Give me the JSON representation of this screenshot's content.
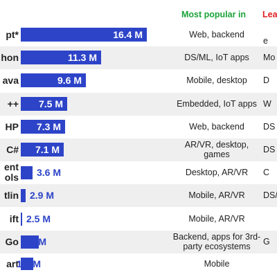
{
  "header": {
    "most_popular": "Most popular in",
    "least_popular": "Lea"
  },
  "chart_data": {
    "type": "bar",
    "orientation": "horizontal",
    "categories": [
      "pt*",
      "hon",
      "ava",
      "++",
      "HP",
      "C#",
      "ent\nols",
      "tlin",
      "ift",
      "Go",
      "art"
    ],
    "values": [
      16.4,
      11.3,
      9.6,
      7.5,
      7.3,
      7.1,
      3.6,
      2.9,
      2.5,
      2.0,
      1.4
    ],
    "value_labels": [
      "16.4 M",
      "11.3 M",
      "9.6 M",
      "7.5 M",
      "7.3 M",
      "7.1 M",
      "3.6 M",
      "2.9 M",
      "2.5 M",
      "2.0 M",
      "1.4 M"
    ],
    "xlim": [
      0,
      16.4
    ],
    "most_popular_in": [
      "Web, backend",
      "DS/ML, IoT apps",
      "Mobile, desktop",
      "Embedded, IoT apps",
      "Web, backend",
      "AR/VR, desktop, games",
      "Desktop, AR/VR",
      "Mobile, AR/VR",
      "Mobile, AR/VR",
      "Backend, apps for 3rd-party ecosystems",
      "Mobile"
    ],
    "least_popular_in": [
      "e",
      "Mo",
      "D",
      "W",
      "DS",
      "DS",
      "C",
      "DS/",
      "",
      "G",
      ""
    ],
    "colors": {
      "bar": "#2d44c8",
      "popular_header": "#1aa33a",
      "least_header": "#e02020",
      "row_shade": "#efefef"
    }
  }
}
